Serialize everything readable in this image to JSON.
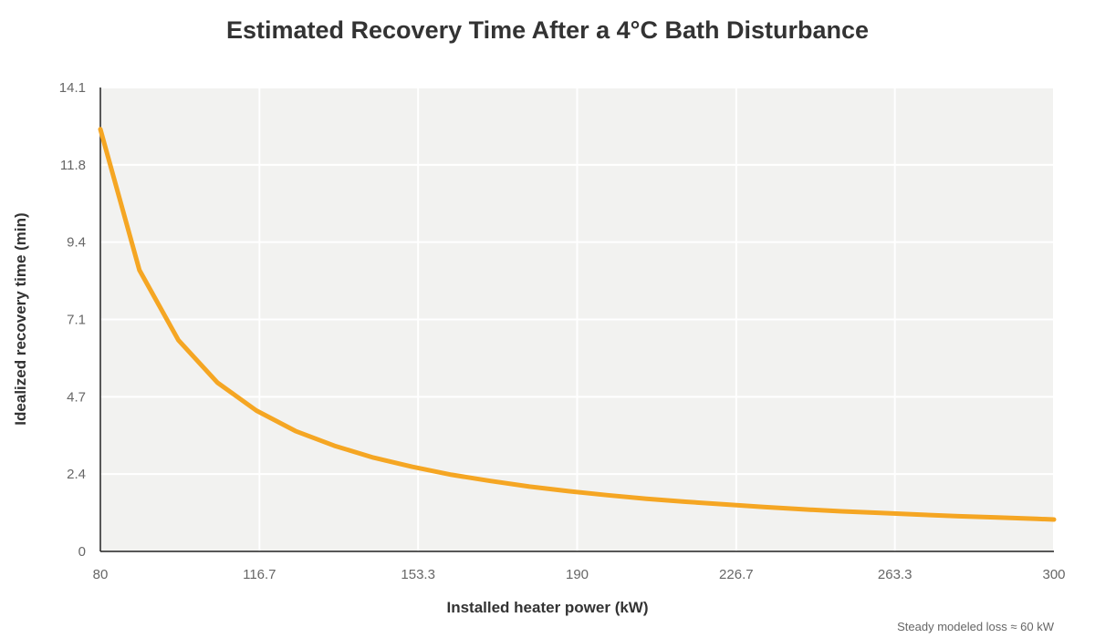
{
  "chart_data": {
    "type": "line",
    "title": "Estimated Recovery Time After a 4°C Bath Disturbance",
    "xlabel": "Installed heater power (kW)",
    "ylabel": "Idealized recovery time (min)",
    "xlim": [
      80,
      300
    ],
    "ylim": [
      0,
      14.1
    ],
    "x_ticks": [
      "80",
      "116.7",
      "153.3",
      "190",
      "226.7",
      "263.3",
      "300"
    ],
    "x_tick_values": [
      80,
      116.7,
      153.3,
      190,
      226.7,
      263.3,
      300
    ],
    "y_ticks": [
      "0",
      "2.4",
      "4.7",
      "7.1",
      "9.4",
      "11.8",
      "14.1"
    ],
    "y_tick_values": [
      0,
      2.35,
      4.7,
      7.05,
      9.4,
      11.75,
      14.1
    ],
    "grid": true,
    "legend": "none",
    "annotation": "Steady modeled loss ≈ 60 kW",
    "series": [
      {
        "color": "#F5A623",
        "x": [
          80,
          89,
          98,
          107,
          116,
          125,
          134,
          143,
          152,
          161,
          170,
          179,
          188,
          197,
          206,
          215,
          224,
          233,
          242,
          251,
          260,
          269,
          278,
          287,
          296,
          300
        ],
        "y": [
          12.83,
          8.55,
          6.42,
          5.13,
          4.28,
          3.66,
          3.21,
          2.85,
          2.57,
          2.33,
          2.14,
          1.97,
          1.83,
          1.71,
          1.6,
          1.51,
          1.43,
          1.35,
          1.28,
          1.22,
          1.17,
          1.12,
          1.07,
          1.03,
          0.99,
          0.97
        ]
      }
    ]
  }
}
